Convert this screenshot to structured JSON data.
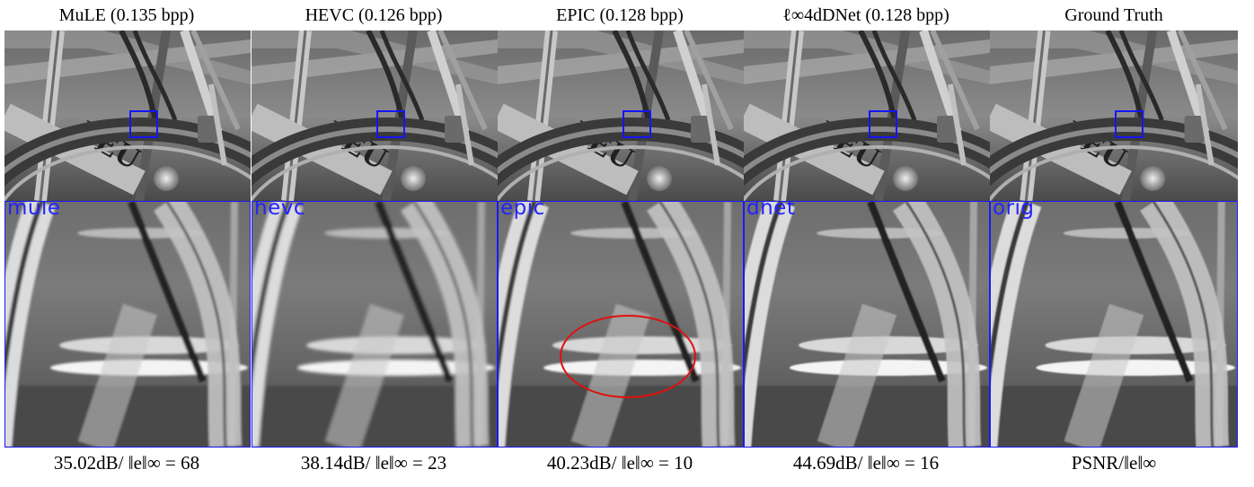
{
  "columns": [
    {
      "title_pre": "MuLE (0.135 bpp)",
      "title_html": "",
      "crop_label": "mule",
      "caption": "35.02dB/ ‖e‖∞ = 68"
    },
    {
      "title_pre": "HEVC (0.126 bpp)",
      "title_html": "",
      "crop_label": "hevc",
      "caption": "38.14dB/ ‖e‖∞ = 23"
    },
    {
      "title_pre": "EPIC (0.128 bpp)",
      "title_html": "",
      "crop_label": "epic",
      "caption": "40.23dB/ ‖e‖∞ = 10"
    },
    {
      "title_pre": "ℓ∞4dDNet (0.128 bpp)",
      "title_html": "",
      "crop_label": "dnet",
      "caption": "44.69dB/ ‖e‖∞ = 16"
    },
    {
      "title_pre": "Ground Truth",
      "title_html": "",
      "crop_label": "orig",
      "caption": "PSNR/‖e‖∞"
    }
  ],
  "colors": {
    "zoom_box": "#1515ff",
    "highlight_ellipse": "#e01010",
    "crop_label": "#2323ff"
  }
}
